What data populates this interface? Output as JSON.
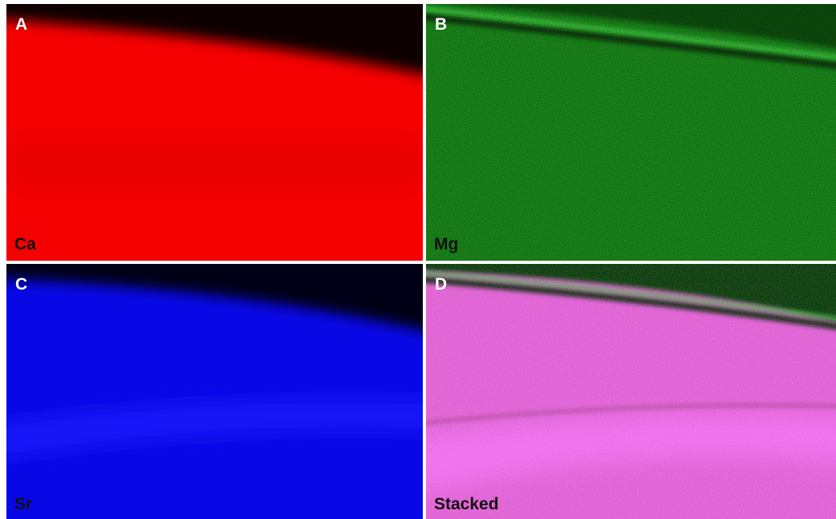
{
  "panels": [
    {
      "letter": "A",
      "label": "Ca"
    },
    {
      "letter": "B",
      "label": "Mg"
    },
    {
      "letter": "C",
      "label": "Sr"
    },
    {
      "letter": "D",
      "label": "Stacked"
    }
  ]
}
